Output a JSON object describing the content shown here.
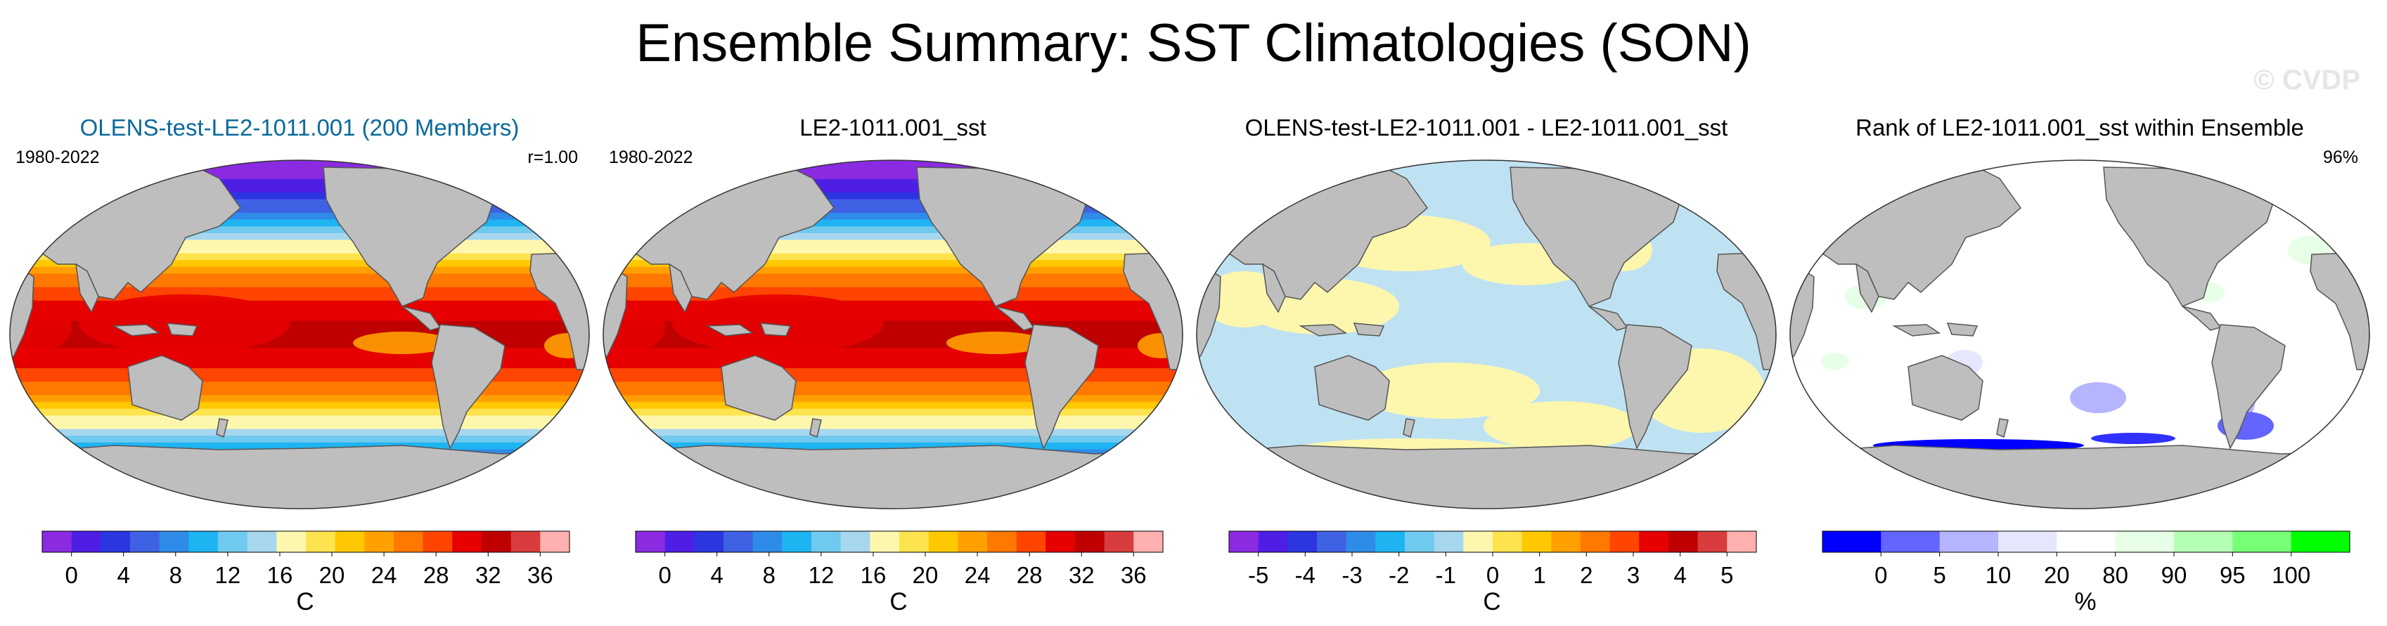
{
  "figure": {
    "title": "Ensemble Summary: SST Climatologies (SON)",
    "watermark": "© CVDP"
  },
  "palettes": {
    "sst": [
      "#8a2be2",
      "#4f1ee6",
      "#2b35e0",
      "#3f61e3",
      "#2f8be8",
      "#1eb4f2",
      "#70c9ee",
      "#a7d6ef",
      "#fdf7ae",
      "#fde34e",
      "#ffc800",
      "#ffa000",
      "#ff7800",
      "#ff4500",
      "#e60000",
      "#bf0000",
      "#d93c3c",
      "#ffb0b0"
    ],
    "rank": [
      "#0000ff",
      "#6464ff",
      "#b4b4ff",
      "#e6e6ff",
      "#ffffff",
      "#e6ffe6",
      "#b4ffb4",
      "#78ff78",
      "#00ff00"
    ],
    "land": "#bebebe"
  },
  "panels": [
    {
      "title": "OLENS-test-LE2-1011.001 (200 Members)",
      "period": "1980-2022",
      "stat": "r=1.00",
      "field": "sst",
      "colorbar": {
        "palette": "sst",
        "labels": [
          "0",
          "4",
          "8",
          "12",
          "16",
          "20",
          "24",
          "28",
          "32",
          "36"
        ],
        "units": "C"
      }
    },
    {
      "title": "LE2-1011.001_sst",
      "period": "1980-2022",
      "stat": "",
      "field": "sst",
      "colorbar": {
        "palette": "sst",
        "labels": [
          "0",
          "4",
          "8",
          "12",
          "16",
          "20",
          "24",
          "28",
          "32",
          "36"
        ],
        "units": "C"
      }
    },
    {
      "title": "OLENS-test-LE2-1011.001 - LE2-1011.001_sst",
      "period": "",
      "stat": "",
      "field": "diff",
      "colorbar": {
        "palette": "sst",
        "labels": [
          "-5",
          "-4",
          "-3",
          "-2",
          "-1",
          "0",
          "1",
          "2",
          "3",
          "4",
          "5"
        ],
        "units": "C"
      }
    },
    {
      "title": "Rank of LE2-1011.001_sst within Ensemble",
      "period": "",
      "stat": "96%",
      "field": "rank",
      "colorbar": {
        "palette": "rank",
        "labels": [
          "0",
          "5",
          "10",
          "20",
          "80",
          "90",
          "95",
          "100"
        ],
        "units": "%"
      }
    }
  ]
}
